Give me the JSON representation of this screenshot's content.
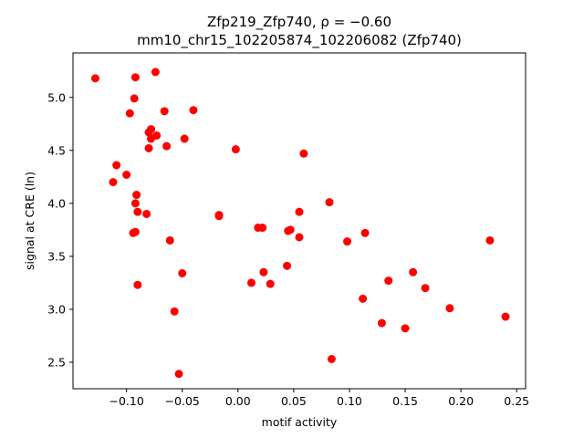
{
  "chart_data": {
    "type": "scatter",
    "title_line1": "Zfp219_Zfp740, ρ = −0.60",
    "title_line2": "mm10_chr15_102205874_102206082 (Zfp740)",
    "xlabel": "motif activity",
    "ylabel": "signal at CRE (ln)",
    "xlim": [
      -0.148,
      0.258
    ],
    "ylim": [
      2.25,
      5.42
    ],
    "xticks": [
      -0.1,
      -0.05,
      0.0,
      0.05,
      0.1,
      0.15,
      0.2,
      0.25
    ],
    "xtick_labels": [
      "−0.10",
      "−0.05",
      "0.00",
      "0.05",
      "0.10",
      "0.15",
      "0.20",
      "0.25"
    ],
    "yticks": [
      2.5,
      3.0,
      3.5,
      4.0,
      4.5,
      5.0
    ],
    "ytick_labels": [
      "2.5",
      "3.0",
      "3.5",
      "4.0",
      "4.5",
      "5.0"
    ],
    "grid": false,
    "point_color": "#ff0000",
    "points": [
      {
        "x": -0.128,
        "y": 5.18
      },
      {
        "x": -0.092,
        "y": 5.19
      },
      {
        "x": -0.074,
        "y": 5.24
      },
      {
        "x": -0.093,
        "y": 4.99
      },
      {
        "x": -0.097,
        "y": 4.85
      },
      {
        "x": -0.066,
        "y": 4.87
      },
      {
        "x": -0.04,
        "y": 4.88
      },
      {
        "x": -0.08,
        "y": 4.67
      },
      {
        "x": -0.078,
        "y": 4.7
      },
      {
        "x": -0.073,
        "y": 4.64
      },
      {
        "x": -0.078,
        "y": 4.61
      },
      {
        "x": -0.064,
        "y": 4.54
      },
      {
        "x": -0.08,
        "y": 4.52
      },
      {
        "x": -0.048,
        "y": 4.61
      },
      {
        "x": -0.002,
        "y": 4.51
      },
      {
        "x": 0.059,
        "y": 4.47
      },
      {
        "x": -0.109,
        "y": 4.36
      },
      {
        "x": -0.1,
        "y": 4.27
      },
      {
        "x": -0.112,
        "y": 4.2
      },
      {
        "x": -0.091,
        "y": 4.08
      },
      {
        "x": -0.092,
        "y": 4.0
      },
      {
        "x": -0.09,
        "y": 3.92
      },
      {
        "x": -0.082,
        "y": 3.9
      },
      {
        "x": -0.017,
        "y": 3.88
      },
      {
        "x": -0.017,
        "y": 3.89
      },
      {
        "x": 0.082,
        "y": 4.01
      },
      {
        "x": 0.055,
        "y": 3.92
      },
      {
        "x": -0.094,
        "y": 3.72
      },
      {
        "x": -0.092,
        "y": 3.73
      },
      {
        "x": 0.018,
        "y": 3.77
      },
      {
        "x": 0.022,
        "y": 3.77
      },
      {
        "x": 0.045,
        "y": 3.74
      },
      {
        "x": 0.047,
        "y": 3.75
      },
      {
        "x": 0.055,
        "y": 3.68
      },
      {
        "x": 0.114,
        "y": 3.72
      },
      {
        "x": 0.098,
        "y": 3.64
      },
      {
        "x": -0.061,
        "y": 3.65
      },
      {
        "x": 0.226,
        "y": 3.65
      },
      {
        "x": 0.044,
        "y": 3.41
      },
      {
        "x": 0.023,
        "y": 3.35
      },
      {
        "x": -0.05,
        "y": 3.34
      },
      {
        "x": 0.157,
        "y": 3.35
      },
      {
        "x": 0.135,
        "y": 3.27
      },
      {
        "x": 0.012,
        "y": 3.25
      },
      {
        "x": 0.029,
        "y": 3.24
      },
      {
        "x": -0.09,
        "y": 3.23
      },
      {
        "x": 0.168,
        "y": 3.2
      },
      {
        "x": 0.112,
        "y": 3.1
      },
      {
        "x": 0.19,
        "y": 3.01
      },
      {
        "x": -0.057,
        "y": 2.98
      },
      {
        "x": 0.24,
        "y": 2.93
      },
      {
        "x": 0.129,
        "y": 2.87
      },
      {
        "x": 0.15,
        "y": 2.82
      },
      {
        "x": 0.084,
        "y": 2.53
      },
      {
        "x": -0.053,
        "y": 2.39
      }
    ]
  }
}
